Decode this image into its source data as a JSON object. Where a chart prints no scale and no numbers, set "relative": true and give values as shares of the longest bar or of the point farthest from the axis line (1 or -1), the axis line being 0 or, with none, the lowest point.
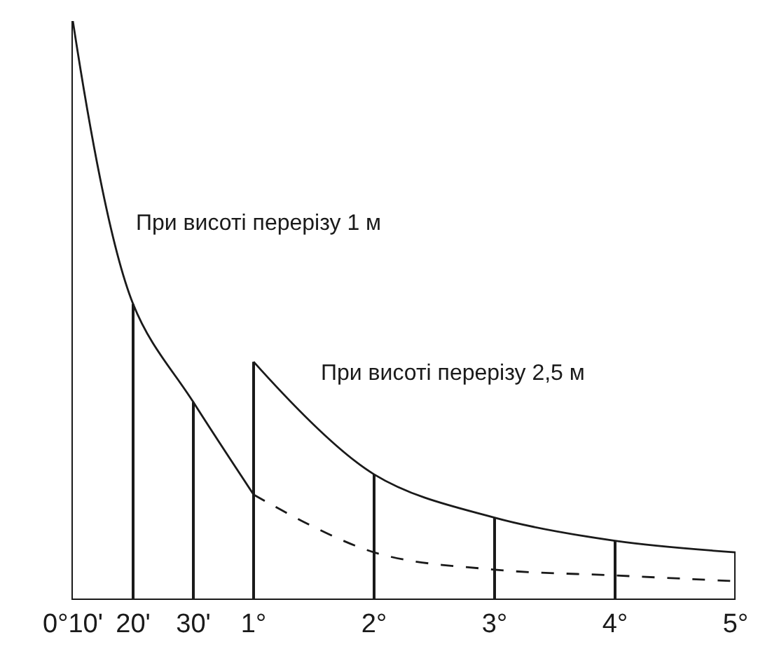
{
  "chart_data": {
    "type": "line",
    "relative": true,
    "categories": [
      "0°10'",
      "20'",
      "30'",
      "1°",
      null,
      "2°",
      null,
      "3°",
      null,
      "4°",
      null,
      "5°"
    ],
    "series": [
      {
        "color": "#1a1a1a",
        "line_style": "solid",
        "values": [
          1,
          0.51,
          0.34,
          0.18,
          null,
          null,
          null,
          null,
          null,
          null,
          null,
          null
        ]
      },
      {
        "color": "#1a1a1a",
        "line_style": "dashed",
        "values": [
          null,
          null,
          null,
          0.18,
          null,
          0.08,
          null,
          0.05,
          null,
          0.04,
          null,
          0.03
        ]
      },
      {
        "color": "#1a1a1a",
        "line_style": "solid",
        "values": [
          null,
          null,
          null,
          0.41,
          null,
          0.215,
          null,
          0.14,
          null,
          0.1,
          null,
          0.08
        ]
      },
      {
        "type": "bar",
        "color": "#1a1a1a",
        "values": [
          null,
          0.51,
          0.34,
          0.41,
          null,
          0.215,
          null,
          0.14,
          null,
          0.1,
          null,
          0.08
        ]
      }
    ],
    "annotations": [
      "При висоті перерізу 1 м",
      "При висоті перерізу 2,5 м"
    ]
  }
}
